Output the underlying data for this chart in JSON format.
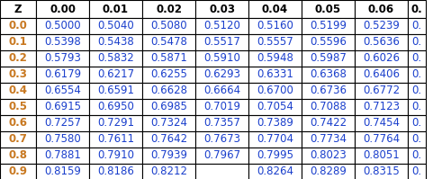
{
  "col_headers": [
    "Z",
    "0.00",
    "0.01",
    "0.02",
    "0.03",
    "0.04",
    "0.05",
    "0.06",
    "0."
  ],
  "rows": [
    [
      "0.0",
      "0.5000",
      "0.5040",
      "0.5080",
      "0.5120",
      "0.5160",
      "0.5199",
      "0.5239",
      "0."
    ],
    [
      "0.1",
      "0.5398",
      "0.5438",
      "0.5478",
      "0.5517",
      "0.5557",
      "0.5596",
      "0.5636",
      "0."
    ],
    [
      "0.2",
      "0.5793",
      "0.5832",
      "0.5871",
      "0.5910",
      "0.5948",
      "0.5987",
      "0.6026",
      "0."
    ],
    [
      "0.3",
      "0.6179",
      "0.6217",
      "0.6255",
      "0.6293",
      "0.6331",
      "0.6368",
      "0.6406",
      "0."
    ],
    [
      "0.4",
      "0.6554",
      "0.6591",
      "0.6628",
      "0.6664",
      "0.6700",
      "0.6736",
      "0.6772",
      "0."
    ],
    [
      "0.5",
      "0.6915",
      "0.6950",
      "0.6985",
      "0.7019",
      "0.7054",
      "0.7088",
      "0.7123",
      "0."
    ],
    [
      "0.6",
      "0.7257",
      "0.7291",
      "0.7324",
      "0.7357",
      "0.7389",
      "0.7422",
      "0.7454",
      "0."
    ],
    [
      "0.7",
      "0.7580",
      "0.7611",
      "0.7642",
      "0.7673",
      "0.7704",
      "0.7734",
      "0.7764",
      "0."
    ],
    [
      "0.8",
      "0.7881",
      "0.7910",
      "0.7939",
      "0.7967",
      "0.7995",
      "0.8023",
      "0.8051",
      "0."
    ],
    [
      "0.9",
      "0.8159",
      "0.8186",
      "0.8212",
      "",
      "0.8264",
      "0.8289",
      "0.8315",
      "0."
    ]
  ],
  "header_bg": "#ffffff",
  "header_text_color": "#000000",
  "data_text_color": "#1a3fcc",
  "z_text_color": "#c87820",
  "border_color": "#000000",
  "cell_font_size": 8.5,
  "header_font_size": 8.5,
  "fig_width": 4.91,
  "fig_height": 1.99,
  "dpi": 100
}
